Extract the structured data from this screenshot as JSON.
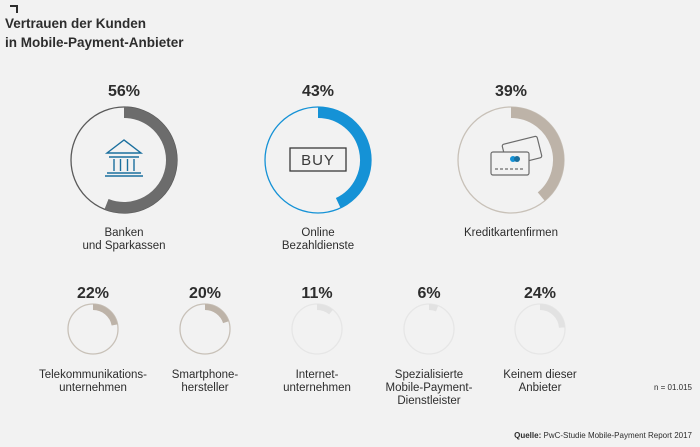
{
  "title_line1": "Vertrauen der Kunden",
  "title_line2": "in Mobile-Payment-Anbieter",
  "sample_note": "n = 01.015",
  "source_label": "Quelle:",
  "source_text": "PwC-Studie Mobile-Payment Report 2017",
  "chart_data": {
    "type": "donut",
    "unit": "%",
    "series": [
      {
        "label": "Banken\nund Sparkassen",
        "display": "56%",
        "value": 56,
        "color": "#6c6c6c",
        "ring": "#5a5a5a",
        "icon": "bank-icon"
      },
      {
        "label": "Online\nBezahldienste",
        "display": "43%",
        "value": 43,
        "color": "#1592d6",
        "ring": "#1592d6",
        "icon": "buy-icon"
      },
      {
        "label": "Kreditkartenfirmen",
        "display": "39%",
        "value": 39,
        "color": "#bdb3a8",
        "ring": "#c8c1b8",
        "icon": "credit-card-icon"
      },
      {
        "label": "Telekommunikations-\nunternehmen",
        "display": "22%",
        "value": 22,
        "color": "#bdb3a8",
        "ring": "#c8c1b8"
      },
      {
        "label": "Smartphone-\nhersteller",
        "display": "20%",
        "value": 20,
        "color": "#bdb3a8",
        "ring": "#c8c1b8"
      },
      {
        "label": "Internet-\nunternehmen",
        "display": "11%",
        "value": 11,
        "color": "#e2e2e2",
        "ring": "#e6e6e6"
      },
      {
        "label": "Spezialisierte\nMobile-Payment-\nDienstleister",
        "display": "6%",
        "value": 6,
        "color": "#e2e2e2",
        "ring": "#e6e6e6"
      },
      {
        "label": "Keinem dieser\nAnbieter",
        "display": "24%",
        "value": 24,
        "color": "#e2e2e2",
        "ring": "#e6e6e6"
      }
    ]
  }
}
